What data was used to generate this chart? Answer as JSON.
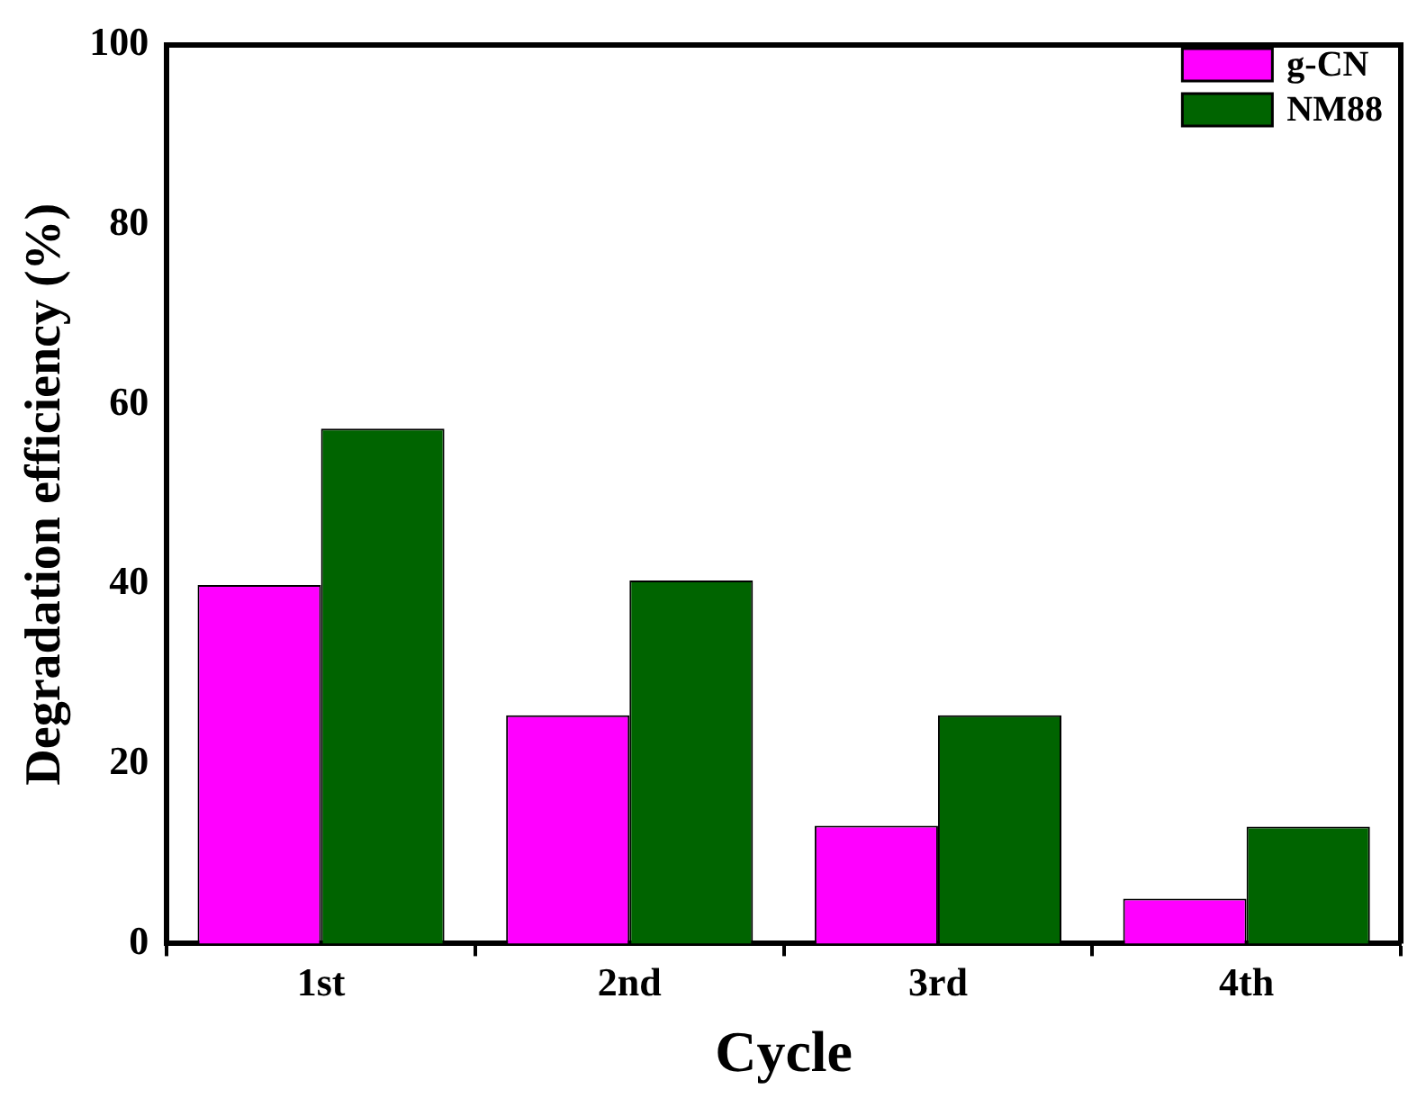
{
  "chart_data": {
    "type": "bar",
    "xlabel": "Cycle",
    "ylabel": "Degradation efficiency (%)",
    "categories": [
      "1st",
      "2nd",
      "3rd",
      "4th"
    ],
    "series": [
      {
        "name": "g-CN",
        "color": "#ff00ff",
        "values": [
          39.9,
          25.4,
          13.1,
          5.0
        ]
      },
      {
        "name": "NM88",
        "color": "#006400",
        "values": [
          57.3,
          40.4,
          25.4,
          13.0
        ]
      }
    ],
    "ylim": [
      0,
      100
    ],
    "yticks": [
      0,
      20,
      40,
      60,
      80,
      100
    ],
    "grid": false,
    "legend": "top right"
  }
}
